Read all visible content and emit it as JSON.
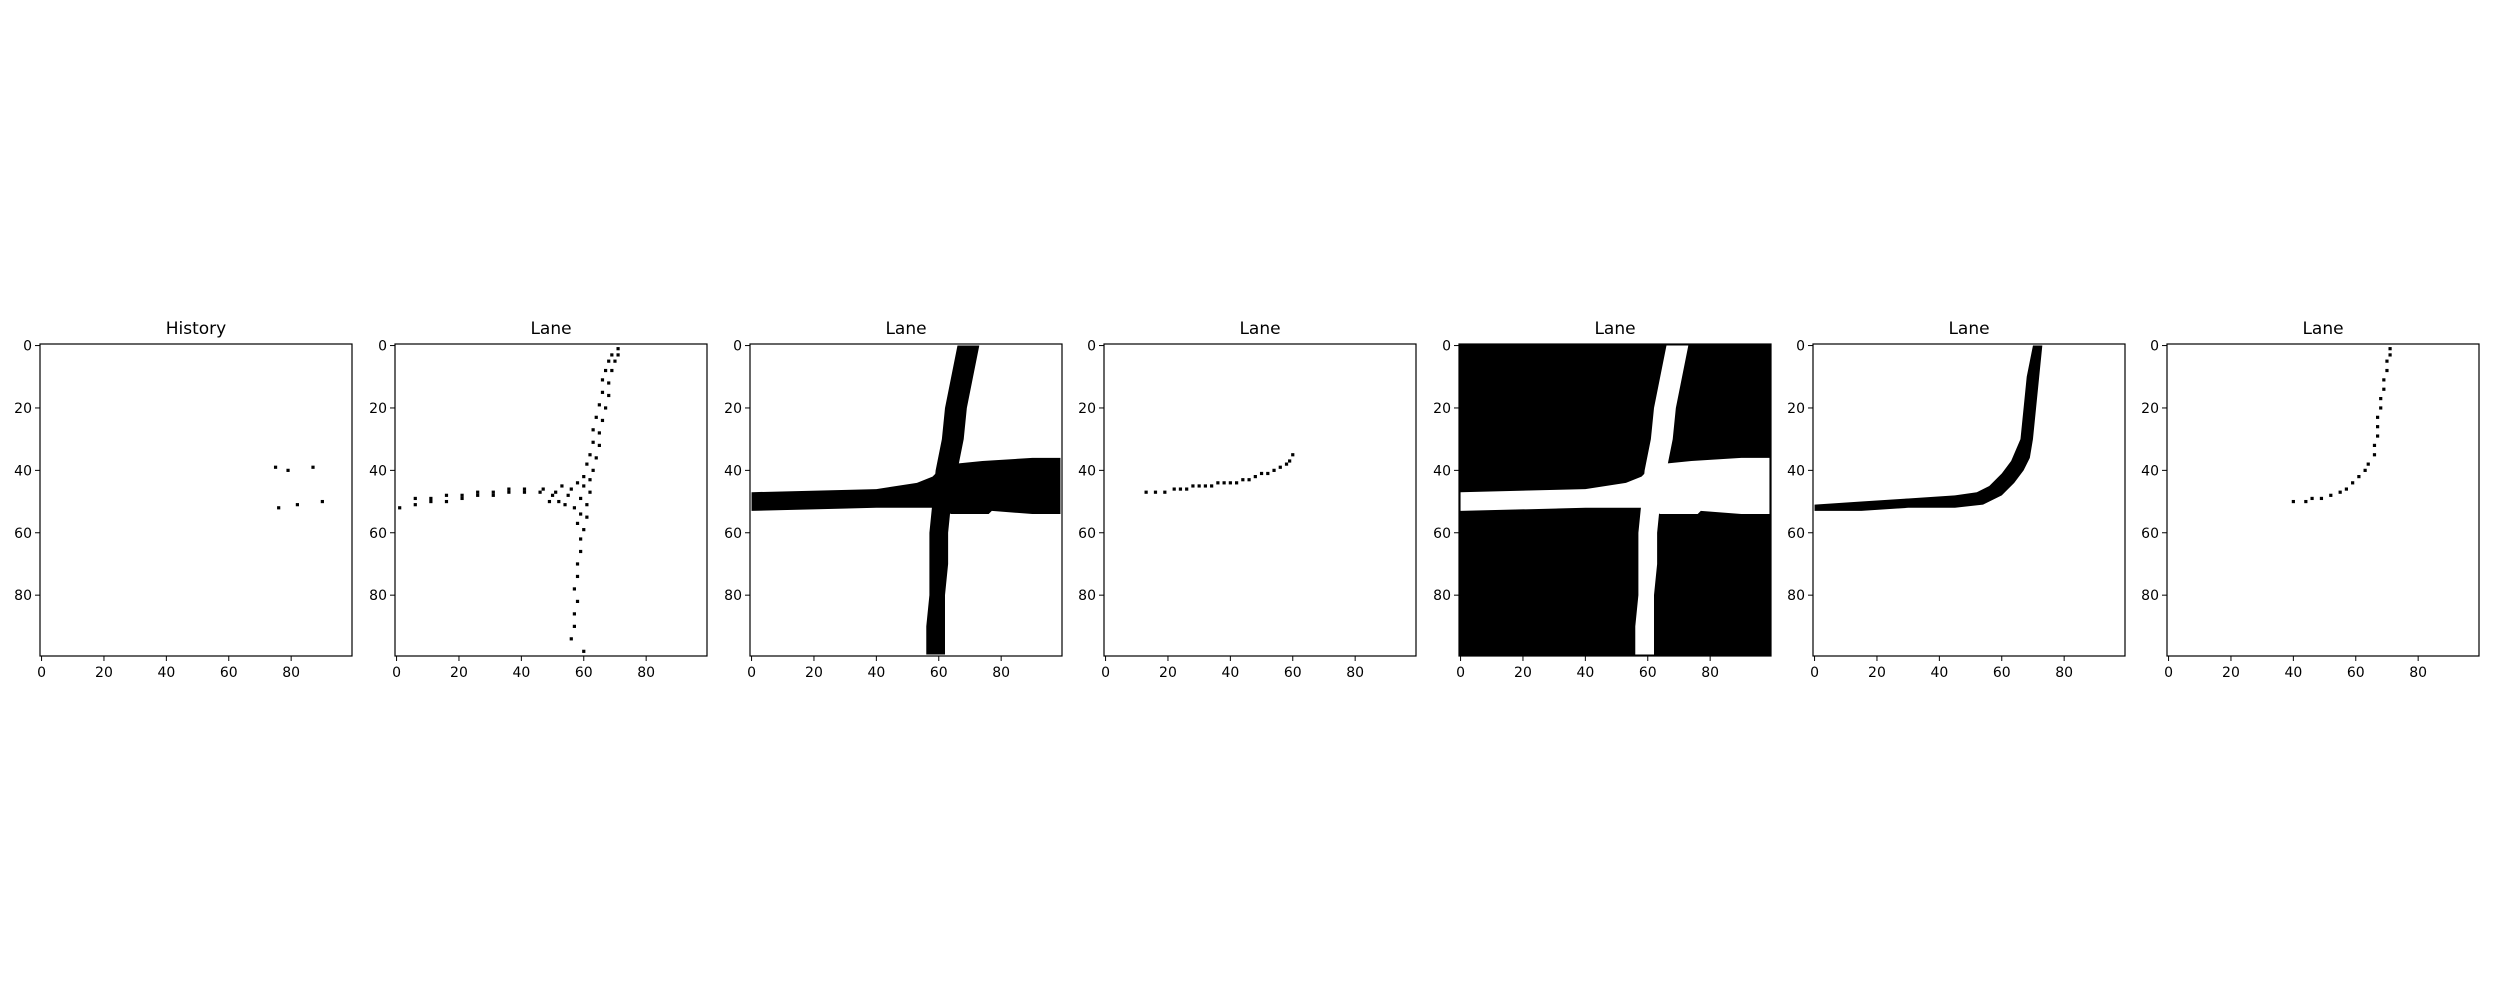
{
  "colors": {
    "background": "#ffffff",
    "foreground": "#000000"
  },
  "chart_data": [
    {
      "type": "heatmap",
      "title": "History",
      "xlim": [
        0,
        99
      ],
      "ylim": [
        99,
        0
      ],
      "xticks": [
        0,
        20,
        40,
        60,
        80
      ],
      "yticks": [
        0,
        20,
        40,
        60,
        80
      ],
      "background": "white",
      "points": [
        [
          75,
          39
        ],
        [
          79,
          40
        ],
        [
          87,
          39
        ],
        [
          76,
          52
        ],
        [
          82,
          51
        ],
        [
          90,
          50
        ]
      ]
    },
    {
      "type": "heatmap",
      "title": "Lane",
      "xlim": [
        0,
        99
      ],
      "ylim": [
        99,
        0
      ],
      "xticks": [
        0,
        20,
        40,
        60,
        80
      ],
      "yticks": [
        0,
        20,
        40,
        60,
        80
      ],
      "background": "white",
      "points": [
        [
          71,
          1
        ],
        [
          71,
          3
        ],
        [
          69,
          3
        ],
        [
          68,
          5
        ],
        [
          70,
          5
        ],
        [
          67,
          8
        ],
        [
          69,
          8
        ],
        [
          66,
          11
        ],
        [
          68,
          12
        ],
        [
          66,
          15
        ],
        [
          68,
          16
        ],
        [
          65,
          19
        ],
        [
          67,
          20
        ],
        [
          64,
          23
        ],
        [
          66,
          24
        ],
        [
          63,
          27
        ],
        [
          65,
          28
        ],
        [
          63,
          31
        ],
        [
          65,
          32
        ],
        [
          62,
          35
        ],
        [
          64,
          36
        ],
        [
          61,
          38
        ],
        [
          63,
          40
        ],
        [
          60,
          42
        ],
        [
          62,
          43
        ],
        [
          58,
          44
        ],
        [
          60,
          45
        ],
        [
          56,
          46
        ],
        [
          62,
          47
        ],
        [
          55,
          48
        ],
        [
          59,
          49
        ],
        [
          61,
          51
        ],
        [
          57,
          52
        ],
        [
          59,
          54
        ],
        [
          61,
          55
        ],
        [
          58,
          57
        ],
        [
          60,
          59
        ],
        [
          59,
          62
        ],
        [
          59,
          66
        ],
        [
          58,
          70
        ],
        [
          58,
          74
        ],
        [
          57,
          78
        ],
        [
          58,
          82
        ],
        [
          57,
          86
        ],
        [
          57,
          90
        ],
        [
          56,
          94
        ],
        [
          60,
          98
        ],
        [
          1,
          52
        ],
        [
          6,
          51
        ],
        [
          11,
          50
        ],
        [
          16,
          50
        ],
        [
          21,
          49
        ],
        [
          26,
          48
        ],
        [
          31,
          48
        ],
        [
          36,
          47
        ],
        [
          41,
          47
        ],
        [
          46,
          47
        ],
        [
          51,
          47
        ],
        [
          6,
          49
        ],
        [
          11,
          49
        ],
        [
          16,
          48
        ],
        [
          21,
          48
        ],
        [
          26,
          47
        ],
        [
          31,
          47
        ],
        [
          36,
          46
        ],
        [
          41,
          46
        ],
        [
          47,
          46
        ],
        [
          49,
          50
        ],
        [
          52,
          50
        ],
        [
          54,
          51
        ],
        [
          50,
          48
        ],
        [
          53,
          45
        ]
      ]
    },
    {
      "type": "heatmap",
      "title": "Lane",
      "xlim": [
        0,
        99
      ],
      "ylim": [
        99,
        0
      ],
      "xticks": [
        0,
        20,
        40,
        60,
        80
      ],
      "yticks": [
        0,
        20,
        40,
        60,
        80
      ],
      "background": "white",
      "polygons": [
        [
          [
            66,
            0
          ],
          [
            73,
            0
          ],
          [
            71,
            10
          ],
          [
            69,
            20
          ],
          [
            68,
            30
          ],
          [
            66,
            40
          ],
          [
            64,
            50
          ],
          [
            63,
            60
          ],
          [
            63,
            70
          ],
          [
            62,
            80
          ],
          [
            62,
            90
          ],
          [
            62,
            99
          ],
          [
            56,
            99
          ],
          [
            56,
            90
          ],
          [
            57,
            80
          ],
          [
            57,
            70
          ],
          [
            57,
            60
          ],
          [
            58,
            50
          ],
          [
            59,
            40
          ],
          [
            61,
            30
          ],
          [
            62,
            20
          ],
          [
            64,
            10
          ]
        ],
        [
          [
            0,
            47
          ],
          [
            40,
            46
          ],
          [
            53,
            44
          ],
          [
            58,
            42
          ],
          [
            60,
            40
          ],
          [
            63,
            39
          ],
          [
            64,
            38
          ],
          [
            74,
            37
          ],
          [
            90,
            36
          ],
          [
            99,
            36
          ],
          [
            99,
            54
          ],
          [
            90,
            54
          ],
          [
            77,
            53
          ],
          [
            76,
            54
          ],
          [
            64,
            54
          ],
          [
            61,
            53
          ],
          [
            58,
            52
          ],
          [
            54,
            52
          ],
          [
            40,
            52
          ],
          [
            0,
            53
          ]
        ]
      ]
    },
    {
      "type": "heatmap",
      "title": "Lane",
      "xlim": [
        0,
        99
      ],
      "ylim": [
        99,
        0
      ],
      "xticks": [
        0,
        20,
        40,
        60,
        80
      ],
      "yticks": [
        0,
        20,
        40,
        60,
        80
      ],
      "background": "white",
      "points": [
        [
          13,
          47
        ],
        [
          16,
          47
        ],
        [
          19,
          47
        ],
        [
          22,
          46
        ],
        [
          24,
          46
        ],
        [
          26,
          46
        ],
        [
          28,
          45
        ],
        [
          30,
          45
        ],
        [
          32,
          45
        ],
        [
          34,
          45
        ],
        [
          36,
          44
        ],
        [
          38,
          44
        ],
        [
          40,
          44
        ],
        [
          42,
          44
        ],
        [
          44,
          43
        ],
        [
          46,
          43
        ],
        [
          48,
          42
        ],
        [
          50,
          41
        ],
        [
          52,
          41
        ],
        [
          54,
          40
        ],
        [
          56,
          39
        ],
        [
          58,
          38
        ],
        [
          59,
          37
        ],
        [
          60,
          35
        ]
      ]
    },
    {
      "type": "heatmap",
      "title": "Lane",
      "xlim": [
        0,
        99
      ],
      "ylim": [
        99,
        0
      ],
      "xticks": [
        0,
        20,
        40,
        60,
        80
      ],
      "yticks": [
        0,
        20,
        40,
        60,
        80
      ],
      "background": "black",
      "polygons": [
        [
          [
            66,
            0
          ],
          [
            73,
            0
          ],
          [
            71,
            10
          ],
          [
            69,
            20
          ],
          [
            68,
            30
          ],
          [
            66,
            40
          ],
          [
            64,
            50
          ],
          [
            63,
            60
          ],
          [
            63,
            70
          ],
          [
            62,
            80
          ],
          [
            62,
            90
          ],
          [
            62,
            99
          ],
          [
            56,
            99
          ],
          [
            56,
            90
          ],
          [
            57,
            80
          ],
          [
            57,
            70
          ],
          [
            57,
            60
          ],
          [
            58,
            50
          ],
          [
            59,
            40
          ],
          [
            61,
            30
          ],
          [
            62,
            20
          ],
          [
            64,
            10
          ]
        ],
        [
          [
            0,
            47
          ],
          [
            40,
            46
          ],
          [
            53,
            44
          ],
          [
            58,
            42
          ],
          [
            60,
            40
          ],
          [
            63,
            39
          ],
          [
            64,
            38
          ],
          [
            74,
            37
          ],
          [
            90,
            36
          ],
          [
            99,
            36
          ],
          [
            99,
            54
          ],
          [
            90,
            54
          ],
          [
            77,
            53
          ],
          [
            76,
            54
          ],
          [
            64,
            54
          ],
          [
            61,
            53
          ],
          [
            58,
            52
          ],
          [
            54,
            52
          ],
          [
            40,
            52
          ],
          [
            0,
            53
          ]
        ]
      ]
    },
    {
      "type": "heatmap",
      "title": "Lane",
      "xlim": [
        0,
        99
      ],
      "ylim": [
        99,
        0
      ],
      "xticks": [
        0,
        20,
        40,
        60,
        80
      ],
      "yticks": [
        0,
        20,
        40,
        60,
        80
      ],
      "background": "white",
      "polygons": [
        [
          [
            70,
            0
          ],
          [
            73,
            0
          ],
          [
            72,
            10
          ],
          [
            71,
            20
          ],
          [
            70,
            30
          ],
          [
            69,
            36
          ],
          [
            67,
            40
          ],
          [
            64,
            44
          ],
          [
            60,
            48
          ],
          [
            54,
            51
          ],
          [
            45,
            52
          ],
          [
            30,
            52
          ],
          [
            15,
            53
          ],
          [
            0,
            53
          ],
          [
            0,
            51
          ],
          [
            15,
            50
          ],
          [
            30,
            49
          ],
          [
            45,
            48
          ],
          [
            52,
            47
          ],
          [
            56,
            45
          ],
          [
            60,
            41
          ],
          [
            63,
            37
          ],
          [
            66,
            30
          ],
          [
            67,
            20
          ],
          [
            68,
            10
          ]
        ]
      ]
    },
    {
      "type": "heatmap",
      "title": "Lane",
      "xlim": [
        0,
        99
      ],
      "ylim": [
        99,
        0
      ],
      "xticks": [
        0,
        20,
        40,
        60,
        80
      ],
      "yticks": [
        0,
        20,
        40,
        60,
        80
      ],
      "background": "white",
      "points": [
        [
          71,
          1
        ],
        [
          71,
          3
        ],
        [
          70,
          5
        ],
        [
          70,
          8
        ],
        [
          69,
          11
        ],
        [
          69,
          14
        ],
        [
          68,
          17
        ],
        [
          68,
          20
        ],
        [
          67,
          23
        ],
        [
          67,
          26
        ],
        [
          67,
          29
        ],
        [
          66,
          32
        ],
        [
          66,
          35
        ],
        [
          64,
          38
        ],
        [
          63,
          40
        ],
        [
          61,
          42
        ],
        [
          59,
          44
        ],
        [
          57,
          46
        ],
        [
          55,
          47
        ],
        [
          52,
          48
        ],
        [
          49,
          49
        ],
        [
          46,
          49
        ],
        [
          44,
          50
        ],
        [
          40,
          50
        ]
      ]
    }
  ]
}
